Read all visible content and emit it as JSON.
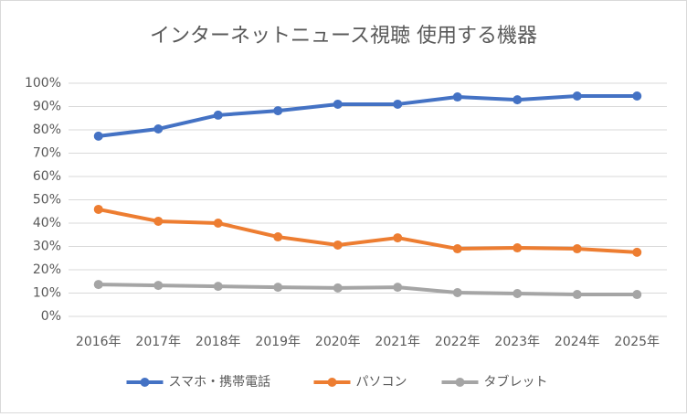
{
  "chart_data": {
    "type": "line",
    "title": "インターネットニュース視聴 使用する機器",
    "categories": [
      "2016年",
      "2017年",
      "2018年",
      "2019年",
      "2020年",
      "2021年",
      "2022年",
      "2023年",
      "2024年",
      "2025年"
    ],
    "series": [
      {
        "name": "スマホ・携帯電話",
        "color": "#4472c4",
        "values": [
          77.3,
          80.4,
          86.3,
          88.2,
          91,
          91,
          94.1,
          92.9,
          94.5,
          94.5
        ]
      },
      {
        "name": "パソコン",
        "color": "#ed7d31",
        "values": [
          45.9,
          40.8,
          40,
          34.1,
          30.6,
          33.7,
          29,
          29.4,
          29,
          27.5
        ]
      },
      {
        "name": "タブレット",
        "color": "#a5a5a5",
        "values": [
          13.7,
          13.3,
          12.9,
          12.5,
          12.2,
          12.5,
          10.2,
          9.8,
          9.4,
          9.4
        ]
      }
    ],
    "ylim": [
      0,
      100
    ],
    "yticks": [
      {
        "value": 0,
        "label": "0%"
      },
      {
        "value": 10,
        "label": "10%"
      },
      {
        "value": 20,
        "label": "20%"
      },
      {
        "value": 30,
        "label": "30%"
      },
      {
        "value": 40,
        "label": "40%"
      },
      {
        "value": 50,
        "label": "50%"
      },
      {
        "value": 60,
        "label": "60%"
      },
      {
        "value": 70,
        "label": "70%"
      },
      {
        "value": 80,
        "label": "80%"
      },
      {
        "value": 90,
        "label": "90%"
      },
      {
        "value": 100,
        "label": "100%"
      }
    ],
    "grid": true,
    "legend": "bottom"
  }
}
